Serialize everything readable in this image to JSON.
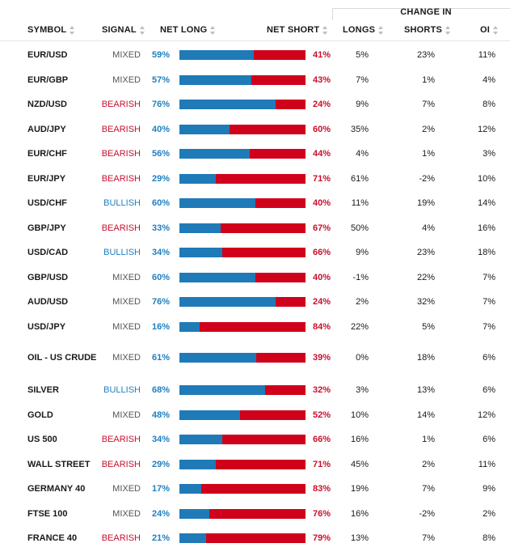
{
  "header": {
    "change_in": "CHANGE IN",
    "symbol": "SYMBOL",
    "signal": "SIGNAL",
    "net_long": "NET LONG",
    "net_short": "NET SHORT",
    "longs": "LONGS",
    "shorts": "SHORTS",
    "oi": "OI"
  },
  "colors": {
    "long": "#1f7ab8",
    "short": "#d0021b",
    "bullish": "#1e7fc0",
    "bearish": "#c8102e",
    "mixed": "#555555"
  },
  "rows": [
    {
      "symbol": "EUR/USD",
      "signal": "MIXED",
      "net_long": "59%",
      "net_short": "41%",
      "long_fraction": 0.59,
      "longs": "5%",
      "shorts": "23%",
      "oi": "11%"
    },
    {
      "symbol": "EUR/GBP",
      "signal": "MIXED",
      "net_long": "57%",
      "net_short": "43%",
      "long_fraction": 0.57,
      "longs": "7%",
      "shorts": "1%",
      "oi": "4%"
    },
    {
      "symbol": "NZD/USD",
      "signal": "BEARISH",
      "net_long": "76%",
      "net_short": "24%",
      "long_fraction": 0.76,
      "longs": "9%",
      "shorts": "7%",
      "oi": "8%"
    },
    {
      "symbol": "AUD/JPY",
      "signal": "BEARISH",
      "net_long": "40%",
      "net_short": "60%",
      "long_fraction": 0.4,
      "longs": "35%",
      "shorts": "2%",
      "oi": "12%"
    },
    {
      "symbol": "EUR/CHF",
      "signal": "BEARISH",
      "net_long": "56%",
      "net_short": "44%",
      "long_fraction": 0.56,
      "longs": "4%",
      "shorts": "1%",
      "oi": "3%"
    },
    {
      "symbol": "EUR/JPY",
      "signal": "BEARISH",
      "net_long": "29%",
      "net_short": "71%",
      "long_fraction": 0.29,
      "longs": "61%",
      "shorts": "-2%",
      "oi": "10%"
    },
    {
      "symbol": "USD/CHF",
      "signal": "BULLISH",
      "net_long": "60%",
      "net_short": "40%",
      "long_fraction": 0.6,
      "longs": "11%",
      "shorts": "19%",
      "oi": "14%"
    },
    {
      "symbol": "GBP/JPY",
      "signal": "BEARISH",
      "net_long": "33%",
      "net_short": "67%",
      "long_fraction": 0.33,
      "longs": "50%",
      "shorts": "4%",
      "oi": "16%"
    },
    {
      "symbol": "USD/CAD",
      "signal": "BULLISH",
      "net_long": "34%",
      "net_short": "66%",
      "long_fraction": 0.34,
      "longs": "9%",
      "shorts": "23%",
      "oi": "18%"
    },
    {
      "symbol": "GBP/USD",
      "signal": "MIXED",
      "net_long": "60%",
      "net_short": "40%",
      "long_fraction": 0.6,
      "longs": "-1%",
      "shorts": "22%",
      "oi": "7%"
    },
    {
      "symbol": "AUD/USD",
      "signal": "MIXED",
      "net_long": "76%",
      "net_short": "24%",
      "long_fraction": 0.76,
      "longs": "2%",
      "shorts": "32%",
      "oi": "7%"
    },
    {
      "symbol": "USD/JPY",
      "signal": "MIXED",
      "net_long": "16%",
      "net_short": "84%",
      "long_fraction": 0.16,
      "longs": "22%",
      "shorts": "5%",
      "oi": "7%"
    },
    {
      "symbol": "OIL - US CRUDE",
      "signal": "MIXED",
      "net_long": "61%",
      "net_short": "39%",
      "long_fraction": 0.61,
      "longs": "0%",
      "shorts": "18%",
      "oi": "6%"
    },
    {
      "symbol": "SILVER",
      "signal": "BULLISH",
      "net_long": "68%",
      "net_short": "32%",
      "long_fraction": 0.68,
      "longs": "3%",
      "shorts": "13%",
      "oi": "6%"
    },
    {
      "symbol": "GOLD",
      "signal": "MIXED",
      "net_long": "48%",
      "net_short": "52%",
      "long_fraction": 0.48,
      "longs": "10%",
      "shorts": "14%",
      "oi": "12%"
    },
    {
      "symbol": "US 500",
      "signal": "BEARISH",
      "net_long": "34%",
      "net_short": "66%",
      "long_fraction": 0.34,
      "longs": "16%",
      "shorts": "1%",
      "oi": "6%"
    },
    {
      "symbol": "WALL STREET",
      "signal": "BEARISH",
      "net_long": "29%",
      "net_short": "71%",
      "long_fraction": 0.29,
      "longs": "45%",
      "shorts": "2%",
      "oi": "11%"
    },
    {
      "symbol": "GERMANY 40",
      "signal": "MIXED",
      "net_long": "17%",
      "net_short": "83%",
      "long_fraction": 0.17,
      "longs": "19%",
      "shorts": "7%",
      "oi": "9%"
    },
    {
      "symbol": "FTSE 100",
      "signal": "MIXED",
      "net_long": "24%",
      "net_short": "76%",
      "long_fraction": 0.24,
      "longs": "16%",
      "shorts": "-2%",
      "oi": "2%"
    },
    {
      "symbol": "FRANCE 40",
      "signal": "BEARISH",
      "net_long": "21%",
      "net_short": "79%",
      "long_fraction": 0.21,
      "longs": "13%",
      "shorts": "7%",
      "oi": "8%"
    }
  ]
}
